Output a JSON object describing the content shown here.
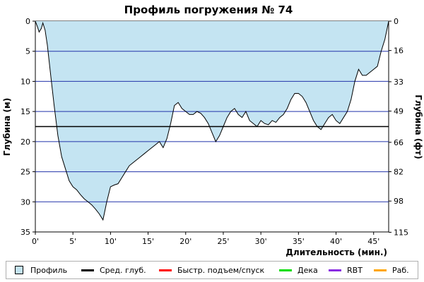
{
  "chart_data": {
    "type": "area",
    "title": "Профиль погружения № 74",
    "xlabel": "Длительность (мин.)",
    "ylabel": "Глубина (м)",
    "ylabel_right": "Глубина (фт)",
    "xlim": [
      0,
      47
    ],
    "ylim": [
      0,
      35
    ],
    "y_inverted": true,
    "x_ticks": [
      "0'",
      "5'",
      "10'",
      "15'",
      "20'",
      "25'",
      "30'",
      "35'",
      "40'",
      "45'"
    ],
    "y_ticks": [
      "0",
      "5",
      "10",
      "15",
      "20",
      "25",
      "30",
      "35"
    ],
    "y_right_ticks": [
      "0",
      "16",
      "33",
      "49",
      "66",
      "82",
      "98",
      "115"
    ],
    "grid": true,
    "average_depth": 17.5,
    "series": [
      {
        "name": "Профиль",
        "color": "#c4e4f2",
        "x": [
          0,
          0.3,
          0.5,
          0.8,
          1.0,
          1.3,
          1.6,
          2.0,
          2.5,
          3.0,
          3.5,
          4.0,
          4.5,
          5.0,
          5.5,
          6.0,
          6.5,
          7.0,
          7.5,
          8.0,
          8.5,
          9.0,
          9.5,
          10.0,
          10.5,
          11.0,
          11.5,
          12.0,
          12.5,
          13.0,
          13.5,
          14.0,
          14.5,
          15.0,
          15.5,
          16.0,
          16.5,
          17.0,
          17.5,
          18.0,
          18.5,
          19.0,
          19.5,
          20.0,
          20.5,
          21.0,
          21.5,
          22.0,
          22.5,
          23.0,
          23.5,
          24.0,
          24.5,
          25.0,
          25.5,
          26.0,
          26.5,
          27.0,
          27.5,
          28.0,
          28.5,
          29.0,
          29.5,
          30.0,
          30.5,
          31.0,
          31.5,
          32.0,
          32.5,
          33.0,
          33.5,
          34.0,
          34.5,
          35.0,
          35.5,
          36.0,
          36.5,
          37.0,
          37.5,
          38.0,
          38.5,
          39.0,
          39.5,
          40.0,
          40.5,
          41.0,
          41.5,
          42.0,
          42.5,
          43.0,
          43.5,
          44.0,
          44.5,
          45.0,
          45.5,
          46.0,
          46.5,
          47.0
        ],
        "y": [
          0,
          1.0,
          1.8,
          1.2,
          0.3,
          1.5,
          4.0,
          8.5,
          14.0,
          19.0,
          22.5,
          24.5,
          26.5,
          27.5,
          28.0,
          28.8,
          29.5,
          30.0,
          30.5,
          31.2,
          32.0,
          33.0,
          30.0,
          27.5,
          27.2,
          27.0,
          26.0,
          25.0,
          24.0,
          23.5,
          23.0,
          22.5,
          22.0,
          21.5,
          21.0,
          20.5,
          20.0,
          21.0,
          19.5,
          17.0,
          14.0,
          13.5,
          14.5,
          15.0,
          15.5,
          15.5,
          15.0,
          15.3,
          16.0,
          17.0,
          18.5,
          20.0,
          19.0,
          17.5,
          16.0,
          15.0,
          14.5,
          15.5,
          16.0,
          15.0,
          16.5,
          17.0,
          17.5,
          16.5,
          17.0,
          17.2,
          16.5,
          16.8,
          16.0,
          15.5,
          14.5,
          13.0,
          12.0,
          12.0,
          12.5,
          13.5,
          15.0,
          16.5,
          17.5,
          18.0,
          17.0,
          16.0,
          15.5,
          16.5,
          17.0,
          16.0,
          15.0,
          13.0,
          10.0,
          8.0,
          9.0,
          9.0,
          8.5,
          8.0,
          7.5,
          5.0,
          3.0,
          0.0
        ]
      }
    ]
  },
  "legend": {
    "items": [
      {
        "label": "Профиль",
        "color": "#c4e4f2",
        "kind": "box"
      },
      {
        "label": "Сред. глуб.",
        "color": "#000000",
        "kind": "line"
      },
      {
        "label": "Быстр. подъем/спуск",
        "color": "#ff0000",
        "kind": "line"
      },
      {
        "label": "Дека",
        "color": "#00dd00",
        "kind": "line"
      },
      {
        "label": "RBT",
        "color": "#8a2be2",
        "kind": "line"
      },
      {
        "label": "Раб.",
        "color": "#ffa500",
        "kind": "line"
      }
    ]
  }
}
